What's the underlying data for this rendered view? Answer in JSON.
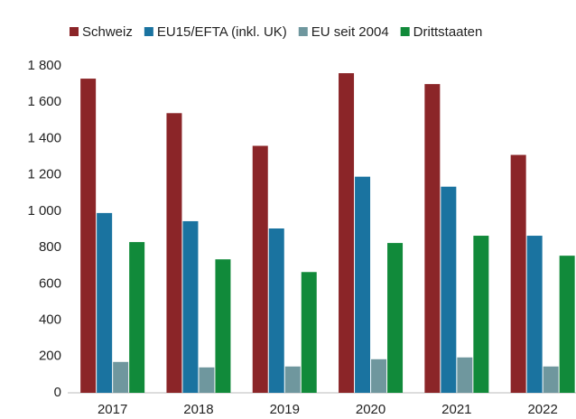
{
  "chart_data": {
    "type": "bar",
    "categories": [
      "2017",
      "2018",
      "2019",
      "2020",
      "2021",
      "2022"
    ],
    "series": [
      {
        "name": "Schweiz",
        "color": "#8b2528",
        "values": [
          1730,
          1540,
          1360,
          1760,
          1700,
          1310
        ]
      },
      {
        "name": "EU15/EFTA (inkl. UK)",
        "color": "#1a73a0",
        "values": [
          990,
          945,
          905,
          1190,
          1135,
          865
        ]
      },
      {
        "name": "EU seit 2004",
        "color": "#6f979e",
        "values": [
          170,
          140,
          145,
          185,
          195,
          145
        ]
      },
      {
        "name": "Drittstaaten",
        "color": "#118a3a",
        "values": [
          830,
          735,
          665,
          825,
          865,
          755
        ]
      }
    ],
    "ylim": [
      0,
      1800
    ],
    "yticks": [
      0,
      200,
      400,
      600,
      800,
      {
        "value": 1000,
        "label": "1 000"
      },
      {
        "value": 1200,
        "label": "1 200"
      },
      {
        "value": 1400,
        "label": "1 400"
      },
      {
        "value": 1600,
        "label": "1 600"
      },
      {
        "value": 1800,
        "label": "1 800"
      }
    ],
    "grid": false,
    "legend": "top"
  }
}
